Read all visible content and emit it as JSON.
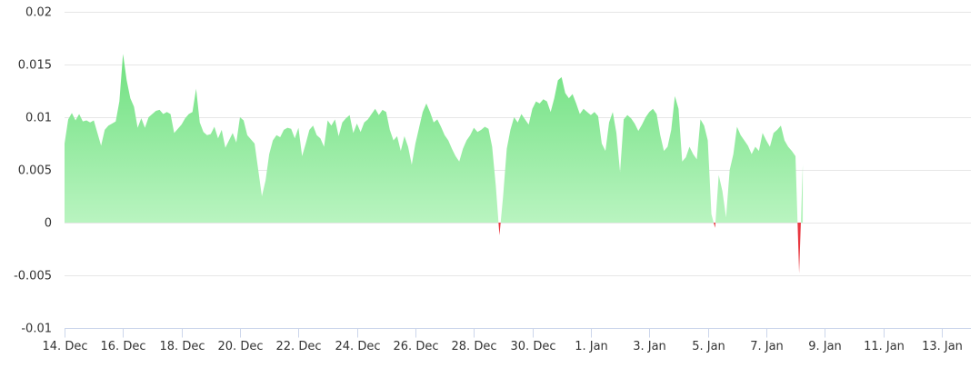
{
  "chart_data": {
    "type": "area",
    "title": "",
    "xlabel": "",
    "ylabel": "",
    "x_range": [
      "2022-12-14",
      "2023-01-14"
    ],
    "ylim": [
      -0.01,
      0.02
    ],
    "y_ticks": [
      {
        "value": 0.02,
        "label": "0.02"
      },
      {
        "value": 0.015,
        "label": "0.015"
      },
      {
        "value": 0.01,
        "label": "0.01"
      },
      {
        "value": 0.005,
        "label": "0.005"
      },
      {
        "value": 0,
        "label": "0"
      },
      {
        "value": -0.005,
        "label": "-0.005"
      },
      {
        "value": -0.01,
        "label": "-0.01"
      }
    ],
    "x_ticks": [
      {
        "date": "2022-12-14",
        "label": "14. Dec"
      },
      {
        "date": "2022-12-16",
        "label": "16. Dec"
      },
      {
        "date": "2022-12-18",
        "label": "18. Dec"
      },
      {
        "date": "2022-12-20",
        "label": "20. Dec"
      },
      {
        "date": "2022-12-22",
        "label": "22. Dec"
      },
      {
        "date": "2022-12-24",
        "label": "24. Dec"
      },
      {
        "date": "2022-12-26",
        "label": "26. Dec"
      },
      {
        "date": "2022-12-28",
        "label": "28. Dec"
      },
      {
        "date": "2022-12-30",
        "label": "30. Dec"
      },
      {
        "date": "2023-01-01",
        "label": "1. Jan"
      },
      {
        "date": "2023-01-03",
        "label": "3. Jan"
      },
      {
        "date": "2023-01-05",
        "label": "5. Jan"
      },
      {
        "date": "2023-01-07",
        "label": "7. Jan"
      },
      {
        "date": "2023-01-09",
        "label": "9. Jan"
      },
      {
        "date": "2023-01-11",
        "label": "11. Jan"
      },
      {
        "date": "2023-01-13",
        "label": "13. Jan"
      }
    ],
    "grid": true,
    "legend": "none",
    "colors": {
      "positive_top": "#6ee07f",
      "positive_bottom": "#b9f4c0",
      "negative": "#e8373f"
    },
    "series": [
      {
        "points": [
          [
            "2022-12-14 00:00",
            0.0075
          ],
          [
            "2022-12-14 03:00",
            0.0098
          ],
          [
            "2022-12-14 06:00",
            0.0104
          ],
          [
            "2022-12-14 09:00",
            0.0097
          ],
          [
            "2022-12-14 12:00",
            0.0103
          ],
          [
            "2022-12-14 15:00",
            0.0096
          ],
          [
            "2022-12-14 18:00",
            0.0097
          ],
          [
            "2022-12-14 21:00",
            0.0095
          ],
          [
            "2022-12-15 00:00",
            0.0097
          ],
          [
            "2022-12-15 03:00",
            0.0085
          ],
          [
            "2022-12-15 06:00",
            0.0073
          ],
          [
            "2022-12-15 09:00",
            0.0088
          ],
          [
            "2022-12-15 12:00",
            0.0092
          ],
          [
            "2022-12-15 15:00",
            0.0094
          ],
          [
            "2022-12-15 18:00",
            0.0096
          ],
          [
            "2022-12-15 21:00",
            0.0115
          ],
          [
            "2022-12-16 00:00",
            0.016
          ],
          [
            "2022-12-16 03:00",
            0.0135
          ],
          [
            "2022-12-16 06:00",
            0.0118
          ],
          [
            "2022-12-16 09:00",
            0.011
          ],
          [
            "2022-12-16 12:00",
            0.009
          ],
          [
            "2022-12-16 15:00",
            0.0099
          ],
          [
            "2022-12-16 18:00",
            0.009
          ],
          [
            "2022-12-16 21:00",
            0.01
          ],
          [
            "2022-12-17 00:00",
            0.0103
          ],
          [
            "2022-12-17 03:00",
            0.0106
          ],
          [
            "2022-12-17 06:00",
            0.0107
          ],
          [
            "2022-12-17 09:00",
            0.0103
          ],
          [
            "2022-12-17 12:00",
            0.0105
          ],
          [
            "2022-12-17 15:00",
            0.0103
          ],
          [
            "2022-12-17 18:00",
            0.0085
          ],
          [
            "2022-12-17 21:00",
            0.0089
          ],
          [
            "2022-12-18 00:00",
            0.0093
          ],
          [
            "2022-12-18 03:00",
            0.0099
          ],
          [
            "2022-12-18 06:00",
            0.0103
          ],
          [
            "2022-12-18 09:00",
            0.0105
          ],
          [
            "2022-12-18 12:00",
            0.0127
          ],
          [
            "2022-12-18 15:00",
            0.0095
          ],
          [
            "2022-12-18 18:00",
            0.0086
          ],
          [
            "2022-12-18 21:00",
            0.0083
          ],
          [
            "2022-12-19 00:00",
            0.0084
          ],
          [
            "2022-12-19 03:00",
            0.0091
          ],
          [
            "2022-12-19 06:00",
            0.008
          ],
          [
            "2022-12-19 09:00",
            0.0088
          ],
          [
            "2022-12-19 12:00",
            0.0071
          ],
          [
            "2022-12-19 15:00",
            0.0078
          ],
          [
            "2022-12-19 18:00",
            0.0085
          ],
          [
            "2022-12-19 21:00",
            0.0076
          ],
          [
            "2022-12-20 00:00",
            0.01
          ],
          [
            "2022-12-20 03:00",
            0.0097
          ],
          [
            "2022-12-20 06:00",
            0.0083
          ],
          [
            "2022-12-20 09:00",
            0.0079
          ],
          [
            "2022-12-20 12:00",
            0.0075
          ],
          [
            "2022-12-20 15:00",
            0.005
          ],
          [
            "2022-12-20 18:00",
            0.0025
          ],
          [
            "2022-12-20 21:00",
            0.004
          ],
          [
            "2022-12-21 00:00",
            0.0065
          ],
          [
            "2022-12-21 03:00",
            0.0078
          ],
          [
            "2022-12-21 06:00",
            0.0083
          ],
          [
            "2022-12-21 09:00",
            0.0081
          ],
          [
            "2022-12-21 12:00",
            0.0088
          ],
          [
            "2022-12-21 15:00",
            0.009
          ],
          [
            "2022-12-21 18:00",
            0.0089
          ],
          [
            "2022-12-21 21:00",
            0.008
          ],
          [
            "2022-12-22 00:00",
            0.009
          ],
          [
            "2022-12-22 03:00",
            0.0063
          ],
          [
            "2022-12-22 06:00",
            0.0075
          ],
          [
            "2022-12-22 09:00",
            0.0088
          ],
          [
            "2022-12-22 12:00",
            0.0092
          ],
          [
            "2022-12-22 15:00",
            0.0083
          ],
          [
            "2022-12-22 18:00",
            0.008
          ],
          [
            "2022-12-22 21:00",
            0.0072
          ],
          [
            "2022-12-23 00:00",
            0.0097
          ],
          [
            "2022-12-23 03:00",
            0.0092
          ],
          [
            "2022-12-23 06:00",
            0.0098
          ],
          [
            "2022-12-23 09:00",
            0.0082
          ],
          [
            "2022-12-23 12:00",
            0.0095
          ],
          [
            "2022-12-23 15:00",
            0.0099
          ],
          [
            "2022-12-23 18:00",
            0.0102
          ],
          [
            "2022-12-23 21:00",
            0.0085
          ],
          [
            "2022-12-24 00:00",
            0.0094
          ],
          [
            "2022-12-24 03:00",
            0.0086
          ],
          [
            "2022-12-24 06:00",
            0.0095
          ],
          [
            "2022-12-24 09:00",
            0.0098
          ],
          [
            "2022-12-24 12:00",
            0.0103
          ],
          [
            "2022-12-24 15:00",
            0.0108
          ],
          [
            "2022-12-24 18:00",
            0.0102
          ],
          [
            "2022-12-24 21:00",
            0.0107
          ],
          [
            "2022-12-25 00:00",
            0.0105
          ],
          [
            "2022-12-25 03:00",
            0.0088
          ],
          [
            "2022-12-25 06:00",
            0.0078
          ],
          [
            "2022-12-25 09:00",
            0.0082
          ],
          [
            "2022-12-25 12:00",
            0.0068
          ],
          [
            "2022-12-25 15:00",
            0.0082
          ],
          [
            "2022-12-25 18:00",
            0.0072
          ],
          [
            "2022-12-25 21:00",
            0.0055
          ],
          [
            "2022-12-26 00:00",
            0.0075
          ],
          [
            "2022-12-26 03:00",
            0.009
          ],
          [
            "2022-12-26 06:00",
            0.0105
          ],
          [
            "2022-12-26 09:00",
            0.0113
          ],
          [
            "2022-12-26 12:00",
            0.0105
          ],
          [
            "2022-12-26 15:00",
            0.0095
          ],
          [
            "2022-12-26 18:00",
            0.0098
          ],
          [
            "2022-12-26 21:00",
            0.0091
          ],
          [
            "2022-12-27 00:00",
            0.0083
          ],
          [
            "2022-12-27 03:00",
            0.0078
          ],
          [
            "2022-12-27 06:00",
            0.007
          ],
          [
            "2022-12-27 09:00",
            0.0063
          ],
          [
            "2022-12-27 12:00",
            0.0058
          ],
          [
            "2022-12-27 15:00",
            0.007
          ],
          [
            "2022-12-27 18:00",
            0.0078
          ],
          [
            "2022-12-27 21:00",
            0.0083
          ],
          [
            "2022-12-28 00:00",
            0.009
          ],
          [
            "2022-12-28 03:00",
            0.0086
          ],
          [
            "2022-12-28 06:00",
            0.0088
          ],
          [
            "2022-12-28 09:00",
            0.0091
          ],
          [
            "2022-12-28 12:00",
            0.0089
          ],
          [
            "2022-12-28 15:00",
            0.0072
          ],
          [
            "2022-12-28 18:00",
            0.0035
          ],
          [
            "2022-12-28 21:00",
            -0.0012
          ],
          [
            "2022-12-29 00:00",
            0.0025
          ],
          [
            "2022-12-29 03:00",
            0.007
          ],
          [
            "2022-12-29 06:00",
            0.0088
          ],
          [
            "2022-12-29 09:00",
            0.01
          ],
          [
            "2022-12-29 12:00",
            0.0095
          ],
          [
            "2022-12-29 15:00",
            0.0103
          ],
          [
            "2022-12-29 18:00",
            0.0098
          ],
          [
            "2022-12-29 21:00",
            0.0093
          ],
          [
            "2022-12-30 00:00",
            0.0108
          ],
          [
            "2022-12-30 03:00",
            0.0115
          ],
          [
            "2022-12-30 06:00",
            0.0113
          ],
          [
            "2022-12-30 09:00",
            0.0117
          ],
          [
            "2022-12-30 12:00",
            0.0115
          ],
          [
            "2022-12-30 15:00",
            0.0105
          ],
          [
            "2022-12-30 18:00",
            0.0118
          ],
          [
            "2022-12-30 21:00",
            0.0135
          ],
          [
            "2022-12-31 00:00",
            0.0138
          ],
          [
            "2022-12-31 03:00",
            0.0123
          ],
          [
            "2022-12-31 06:00",
            0.0118
          ],
          [
            "2022-12-31 09:00",
            0.0122
          ],
          [
            "2022-12-31 12:00",
            0.0113
          ],
          [
            "2022-12-31 15:00",
            0.0103
          ],
          [
            "2022-12-31 18:00",
            0.0108
          ],
          [
            "2022-12-31 21:00",
            0.0105
          ],
          [
            "2023-01-01 00:00",
            0.0102
          ],
          [
            "2023-01-01 03:00",
            0.0105
          ],
          [
            "2023-01-01 06:00",
            0.0101
          ],
          [
            "2023-01-01 09:00",
            0.0075
          ],
          [
            "2023-01-01 12:00",
            0.0068
          ],
          [
            "2023-01-01 15:00",
            0.0095
          ],
          [
            "2023-01-01 18:00",
            0.0105
          ],
          [
            "2023-01-01 21:00",
            0.0085
          ],
          [
            "2023-01-02 00:00",
            0.0048
          ],
          [
            "2023-01-02 03:00",
            0.0098
          ],
          [
            "2023-01-02 06:00",
            0.0102
          ],
          [
            "2023-01-02 09:00",
            0.0099
          ],
          [
            "2023-01-02 12:00",
            0.0094
          ],
          [
            "2023-01-02 15:00",
            0.0087
          ],
          [
            "2023-01-02 18:00",
            0.0093
          ],
          [
            "2023-01-02 21:00",
            0.01
          ],
          [
            "2023-01-03 00:00",
            0.0105
          ],
          [
            "2023-01-03 03:00",
            0.0108
          ],
          [
            "2023-01-03 06:00",
            0.0103
          ],
          [
            "2023-01-03 09:00",
            0.0083
          ],
          [
            "2023-01-03 12:00",
            0.0068
          ],
          [
            "2023-01-03 15:00",
            0.0072
          ],
          [
            "2023-01-03 18:00",
            0.0088
          ],
          [
            "2023-01-03 21:00",
            0.012
          ],
          [
            "2023-01-04 00:00",
            0.0108
          ],
          [
            "2023-01-04 03:00",
            0.0058
          ],
          [
            "2023-01-04 06:00",
            0.0062
          ],
          [
            "2023-01-04 09:00",
            0.0072
          ],
          [
            "2023-01-04 12:00",
            0.0065
          ],
          [
            "2023-01-04 15:00",
            0.006
          ],
          [
            "2023-01-04 18:00",
            0.0098
          ],
          [
            "2023-01-04 21:00",
            0.0092
          ],
          [
            "2023-01-05 00:00",
            0.0078
          ],
          [
            "2023-01-05 03:00",
            0.0008
          ],
          [
            "2023-01-05 06:00",
            -0.0005
          ],
          [
            "2023-01-05 09:00",
            0.0045
          ],
          [
            "2023-01-05 12:00",
            0.003
          ],
          [
            "2023-01-05 15:00",
            0.0005
          ],
          [
            "2023-01-05 18:00",
            0.005
          ],
          [
            "2023-01-05 21:00",
            0.0065
          ],
          [
            "2023-01-06 00:00",
            0.0091
          ],
          [
            "2023-01-06 03:00",
            0.0083
          ],
          [
            "2023-01-06 06:00",
            0.0078
          ],
          [
            "2023-01-06 09:00",
            0.0073
          ],
          [
            "2023-01-06 12:00",
            0.0065
          ],
          [
            "2023-01-06 15:00",
            0.0072
          ],
          [
            "2023-01-06 18:00",
            0.0068
          ],
          [
            "2023-01-06 21:00",
            0.0085
          ],
          [
            "2023-01-07 00:00",
            0.0078
          ],
          [
            "2023-01-07 03:00",
            0.0072
          ],
          [
            "2023-01-07 06:00",
            0.0085
          ],
          [
            "2023-01-07 09:00",
            0.0088
          ],
          [
            "2023-01-07 12:00",
            0.0092
          ],
          [
            "2023-01-07 15:00",
            0.0078
          ],
          [
            "2023-01-07 18:00",
            0.0072
          ],
          [
            "2023-01-07 21:00",
            0.0068
          ],
          [
            "2023-01-08 00:00",
            0.0063
          ],
          [
            "2023-01-08 03:00",
            -0.0048
          ],
          [
            "2023-01-08 06:00",
            0.0055
          ]
        ]
      }
    ]
  }
}
